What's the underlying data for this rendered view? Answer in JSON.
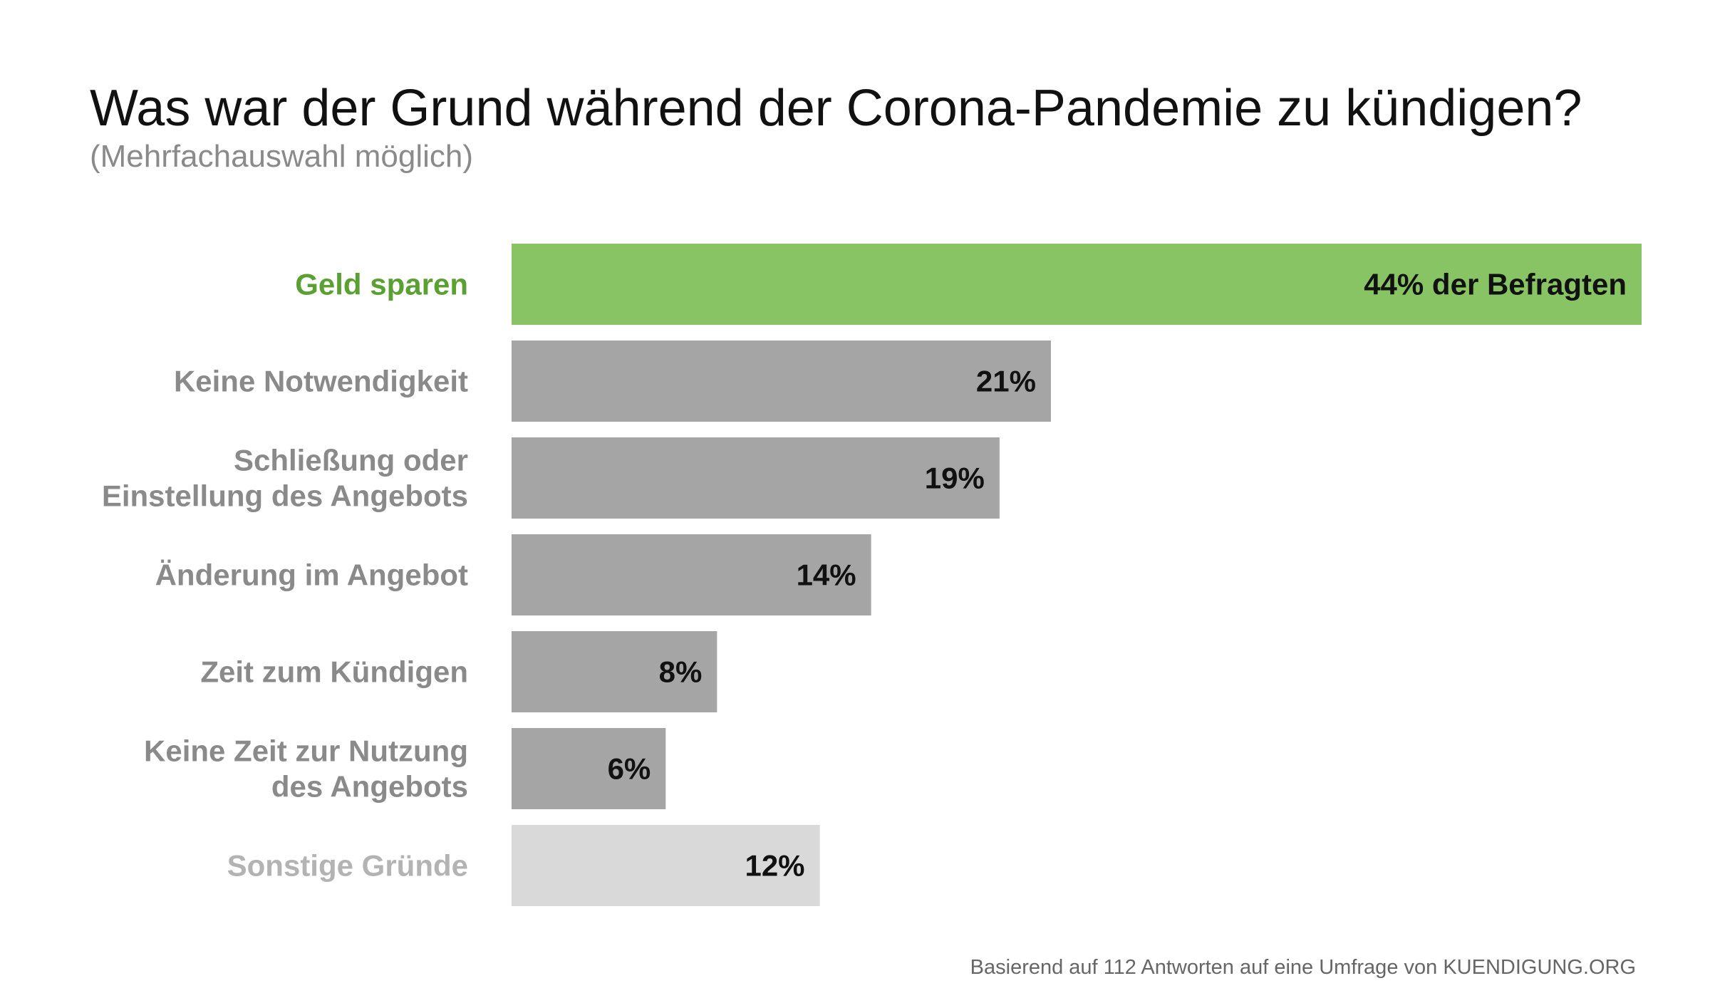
{
  "chart_data": {
    "type": "bar",
    "orientation": "horizontal",
    "title": "Was war der Grund während der Corona-Pandemie zu kündigen?",
    "subtitle": "(Mehrfachauswahl möglich)",
    "categories": [
      "Geld sparen",
      "Keine Notwendigkeit",
      "Schließung oder\nEinstellung des Angebots",
      "Änderung im Angebot",
      "Zeit zum Kündigen",
      "Keine Zeit zur Nutzung\ndes Angebots",
      "Sonstige Gründe"
    ],
    "values": [
      44,
      21,
      19,
      14,
      8,
      6,
      12
    ],
    "value_labels": [
      "44% der Befragten",
      "21%",
      "19%",
      "14%",
      "8%",
      "6%",
      "12%"
    ],
    "unit": "%",
    "xlim": [
      0,
      44
    ],
    "grid": false,
    "legend": "none",
    "bar_colors": [
      "#88c463",
      "#a5a5a5",
      "#a5a5a5",
      "#a5a5a5",
      "#a5a5a5",
      "#a5a5a5",
      "#d9d9d9"
    ],
    "label_colors": [
      "#5aa032",
      "#8a8a8a",
      "#8a8a8a",
      "#8a8a8a",
      "#8a8a8a",
      "#8a8a8a",
      "#b3b3b3"
    ],
    "source_note": "Basierend auf 112 Antworten auf eine Umfrage von KUENDIGUNG.ORG"
  }
}
